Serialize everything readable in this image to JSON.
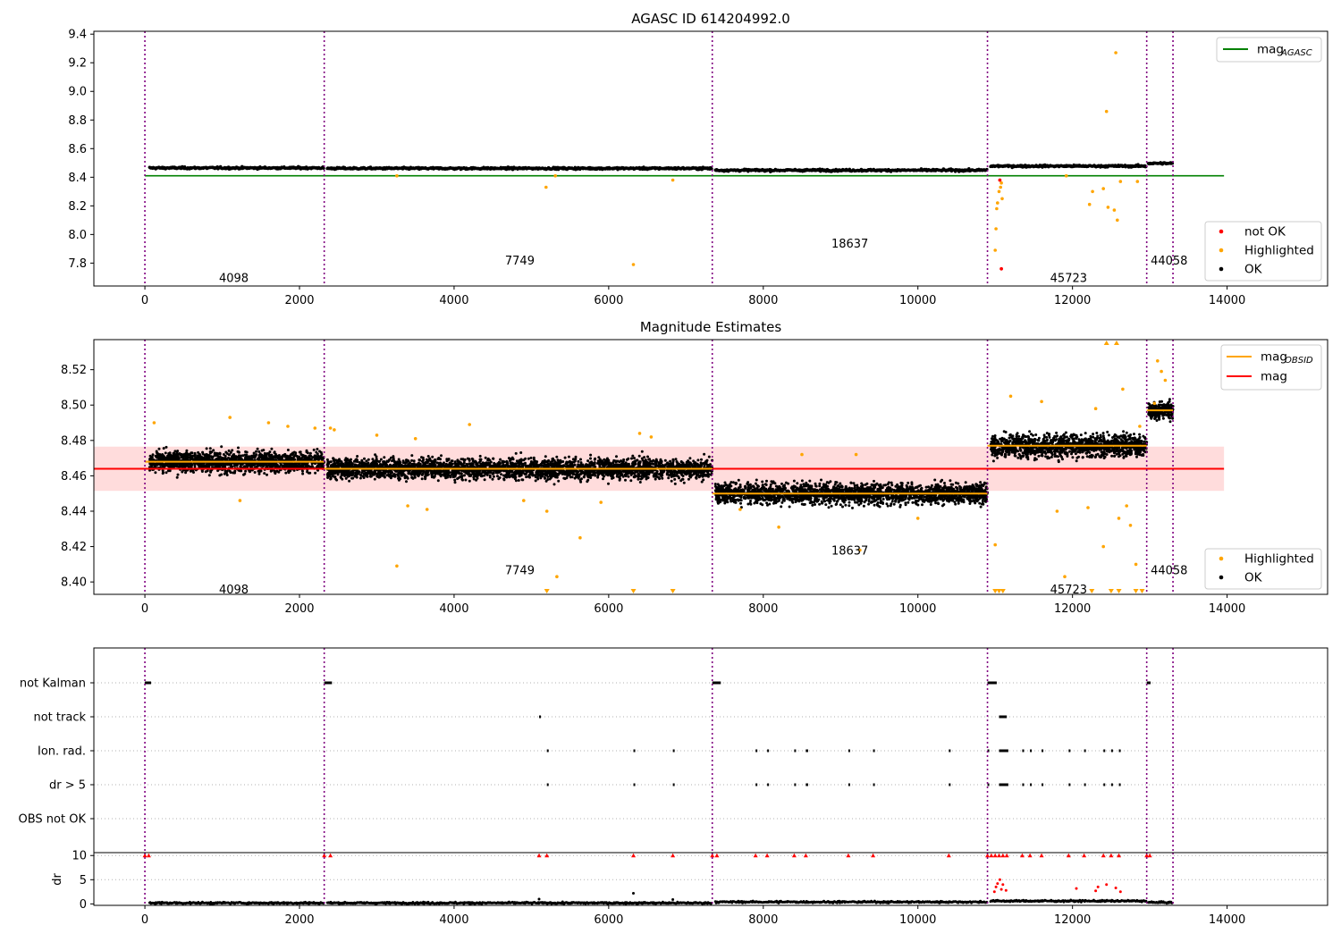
{
  "chart_data": [
    {
      "type": "scatter",
      "title": "AGASC ID 614204992.0",
      "xlim": [
        -660,
        15300
      ],
      "ylim": [
        7.64,
        9.42
      ],
      "x_ticks": [
        0,
        2000,
        4000,
        6000,
        8000,
        10000,
        12000,
        14000
      ],
      "y_ticks": [
        7.8,
        8.0,
        8.2,
        8.4,
        8.6,
        8.8,
        9.0,
        9.2,
        9.4
      ],
      "grid": false,
      "obs_boundaries": [
        0,
        2320,
        7340,
        10900,
        12960,
        13300
      ],
      "obs_labels": [
        {
          "text": "4098",
          "x": 1150,
          "y": 7.7
        },
        {
          "text": "7749",
          "x": 4850,
          "y": 7.82
        },
        {
          "text": "18637",
          "x": 9120,
          "y": 7.94
        },
        {
          "text": "45723",
          "x": 11950,
          "y": 7.7
        },
        {
          "text": "44058",
          "x": 13250,
          "y": 7.82
        }
      ],
      "lines": [
        {
          "name": "magAGASC",
          "color": "#008000",
          "x": [
            0,
            13960
          ],
          "y": [
            8.41,
            8.41
          ]
        }
      ],
      "ok_segments": [
        {
          "x0": 60,
          "x1": 2320,
          "y": 8.465
        },
        {
          "x0": 2360,
          "x1": 7340,
          "y": 8.462
        },
        {
          "x0": 7380,
          "x1": 10900,
          "y": 8.449
        },
        {
          "x0": 10940,
          "x1": 12960,
          "y": 8.478
        },
        {
          "x0": 12980,
          "x1": 13300,
          "y": 8.497
        }
      ],
      "highlighted_points": [
        [
          5190,
          8.33
        ],
        [
          6320,
          7.79
        ],
        [
          6830,
          8.38
        ],
        [
          5310,
          8.41
        ],
        [
          3260,
          8.41
        ],
        [
          11010,
          8.04
        ],
        [
          11030,
          8.22
        ],
        [
          11050,
          8.3
        ],
        [
          11070,
          8.33
        ],
        [
          11090,
          8.25
        ],
        [
          11080,
          8.36
        ],
        [
          11000,
          7.89
        ],
        [
          11020,
          8.18
        ],
        [
          12440,
          8.86
        ],
        [
          12560,
          9.27
        ],
        [
          12220,
          8.21
        ],
        [
          12260,
          8.3
        ],
        [
          12400,
          8.32
        ],
        [
          12460,
          8.19
        ],
        [
          12540,
          8.17
        ],
        [
          12580,
          8.1
        ],
        [
          12620,
          8.37
        ],
        [
          12840,
          8.37
        ],
        [
          11920,
          8.41
        ]
      ],
      "not_ok_points": [
        [
          11060,
          8.38
        ],
        [
          11080,
          7.76
        ]
      ],
      "legend": {
        "position": "upper-right",
        "lines": [
          {
            "label": "mag",
            "sub": "AGASC",
            "color": "#008000"
          }
        ],
        "markers": [
          {
            "label": "not OK",
            "color": "#ff0000"
          },
          {
            "label": "Highlighted",
            "color": "#ffa500"
          },
          {
            "label": "OK",
            "color": "#000000"
          }
        ]
      }
    },
    {
      "type": "scatter",
      "title": "Magnitude Estimates",
      "xlim": [
        -660,
        15300
      ],
      "ylim": [
        8.393,
        8.537
      ],
      "x_ticks": [
        0,
        2000,
        4000,
        6000,
        8000,
        10000,
        12000,
        14000
      ],
      "y_ticks": [
        8.4,
        8.42,
        8.44,
        8.46,
        8.48,
        8.5,
        8.52
      ],
      "grid": false,
      "obs_boundaries": [
        0,
        2320,
        7340,
        10900,
        12960,
        13300
      ],
      "obs_labels": [
        {
          "text": "4098",
          "x": 1150,
          "y": 8.396
        },
        {
          "text": "7749",
          "x": 4850,
          "y": 8.407
        },
        {
          "text": "18637",
          "x": 9120,
          "y": 8.418
        },
        {
          "text": "45723",
          "x": 11950,
          "y": 8.396
        },
        {
          "text": "44058",
          "x": 13250,
          "y": 8.407
        }
      ],
      "band": {
        "x0": -660,
        "x1": 13960,
        "y0": 8.4515,
        "y1": 8.4765,
        "color": "#ffc0c0"
      },
      "lines": [
        {
          "name": "mag",
          "color": "#ff0000",
          "x": [
            -660,
            13960
          ],
          "y": [
            8.464,
            8.464
          ]
        },
        {
          "name": "magOBSID-4098",
          "color": "#ffa500",
          "x": [
            0,
            2320
          ],
          "y": [
            8.468,
            8.468
          ]
        },
        {
          "name": "magOBSID-7749",
          "color": "#ffa500",
          "x": [
            2320,
            7340
          ],
          "y": [
            8.464,
            8.464
          ]
        },
        {
          "name": "magOBSID-18637",
          "color": "#ffa500",
          "x": [
            7340,
            10900
          ],
          "y": [
            8.45,
            8.45
          ]
        },
        {
          "name": "magOBSID-45723",
          "color": "#ffa500",
          "x": [
            10900,
            12960
          ],
          "y": [
            8.477,
            8.477
          ]
        },
        {
          "name": "magOBSID-44058",
          "color": "#ffa500",
          "x": [
            12960,
            13300
          ],
          "y": [
            8.497,
            8.497
          ]
        }
      ],
      "ok_segments": [
        {
          "x0": 60,
          "x1": 2320,
          "y": 8.468,
          "spread": 0.008
        },
        {
          "x0": 2360,
          "x1": 7340,
          "y": 8.464,
          "spread": 0.008
        },
        {
          "x0": 7380,
          "x1": 10900,
          "y": 8.45,
          "spread": 0.008
        },
        {
          "x0": 10940,
          "x1": 12960,
          "y": 8.477,
          "spread": 0.009
        },
        {
          "x0": 12980,
          "x1": 13300,
          "y": 8.497,
          "spread": 0.007
        }
      ],
      "highlighted_points": [
        [
          120,
          8.49
        ],
        [
          1100,
          8.493
        ],
        [
          1600,
          8.49
        ],
        [
          1850,
          8.488
        ],
        [
          2200,
          8.487
        ],
        [
          2400,
          8.487
        ],
        [
          2450,
          8.486
        ],
        [
          3000,
          8.483
        ],
        [
          3500,
          8.481
        ],
        [
          4200,
          8.489
        ],
        [
          1230,
          8.446
        ],
        [
          3260,
          8.409
        ],
        [
          3400,
          8.443
        ],
        [
          3650,
          8.441
        ],
        [
          4900,
          8.446
        ],
        [
          5200,
          8.44
        ],
        [
          5330,
          8.403
        ],
        [
          5630,
          8.425
        ],
        [
          5900,
          8.445
        ],
        [
          6400,
          8.484
        ],
        [
          6550,
          8.482
        ],
        [
          7700,
          8.441
        ],
        [
          8200,
          8.431
        ],
        [
          8500,
          8.472
        ],
        [
          9200,
          8.472
        ],
        [
          9250,
          8.418
        ],
        [
          10000,
          8.436
        ],
        [
          11000,
          8.421
        ],
        [
          11200,
          8.505
        ],
        [
          11600,
          8.502
        ],
        [
          11800,
          8.44
        ],
        [
          11900,
          8.403
        ],
        [
          12200,
          8.442
        ],
        [
          12300,
          8.498
        ],
        [
          12400,
          8.42
        ],
        [
          12600,
          8.436
        ],
        [
          12650,
          8.509
        ],
        [
          12700,
          8.443
        ],
        [
          12750,
          8.432
        ],
        [
          12820,
          8.41
        ],
        [
          12870,
          8.488
        ],
        [
          13100,
          8.525
        ],
        [
          13150,
          8.519
        ],
        [
          13200,
          8.514
        ],
        [
          13060,
          8.501
        ]
      ],
      "clipped_points": [
        [
          5200,
          8.393
        ],
        [
          6320,
          8.393
        ],
        [
          6830,
          8.393
        ],
        [
          11000,
          8.393
        ],
        [
          11050,
          8.393
        ],
        [
          11100,
          8.393
        ],
        [
          12250,
          8.393
        ],
        [
          12500,
          8.393
        ],
        [
          12600,
          8.393
        ],
        [
          12820,
          8.393
        ],
        [
          12900,
          8.393
        ],
        [
          12440,
          8.537
        ],
        [
          12570,
          8.537
        ]
      ],
      "legend": {
        "position": "upper-right",
        "lines": [
          {
            "label": "mag",
            "sub": "OBSID",
            "color": "#ffa500"
          },
          {
            "label": "mag",
            "sub": "",
            "color": "#ff0000"
          }
        ],
        "markers": [
          {
            "label": "Highlighted",
            "color": "#ffa500"
          },
          {
            "label": "OK",
            "color": "#000000"
          }
        ]
      }
    },
    {
      "type": "scatter",
      "title": "",
      "xlim": [
        -660,
        15300
      ],
      "categories": [
        "not Kalman",
        "not track",
        "Ion. rad.",
        "dr > 5",
        "OBS not OK"
      ],
      "obs_boundaries": [
        0,
        2320,
        7340,
        10900,
        12960,
        13300
      ],
      "flags": {
        "not Kalman": [
          [
            0,
            80
          ],
          [
            2320,
            2420
          ],
          [
            7340,
            7450
          ],
          [
            10900,
            11020
          ],
          [
            12960,
            13010
          ]
        ],
        "not track": [
          [
            5100,
            5110
          ],
          [
            11050,
            11150
          ]
        ],
        "Ion. rad.": [
          [
            5200,
            5210
          ],
          [
            6320,
            6330
          ],
          [
            6830,
            6840
          ],
          [
            7900,
            7910
          ],
          [
            8050,
            8060
          ],
          [
            8400,
            8410
          ],
          [
            8550,
            8580
          ],
          [
            9100,
            9110
          ],
          [
            9420,
            9430
          ],
          [
            10400,
            10410
          ],
          [
            10900,
            10910
          ],
          [
            11050,
            11170
          ],
          [
            11350,
            11360
          ],
          [
            11450,
            11460
          ],
          [
            11600,
            11610
          ],
          [
            11950,
            11960
          ],
          [
            12150,
            12160
          ],
          [
            12400,
            12410
          ],
          [
            12500,
            12510
          ],
          [
            12600,
            12610
          ]
        ],
        "dr > 5": [
          [
            5200,
            5210
          ],
          [
            6320,
            6330
          ],
          [
            6830,
            6840
          ],
          [
            7900,
            7910
          ],
          [
            8050,
            8060
          ],
          [
            8400,
            8410
          ],
          [
            8550,
            8580
          ],
          [
            9100,
            9110
          ],
          [
            9420,
            9430
          ],
          [
            10400,
            10410
          ],
          [
            10900,
            10910
          ],
          [
            11050,
            11170
          ],
          [
            11350,
            11360
          ],
          [
            11450,
            11460
          ],
          [
            11600,
            11610
          ],
          [
            11950,
            11960
          ],
          [
            12150,
            12160
          ],
          [
            12400,
            12410
          ],
          [
            12500,
            12510
          ],
          [
            12600,
            12610
          ]
        ],
        "OBS not OK": []
      }
    },
    {
      "type": "scatter",
      "title": "",
      "xlim": [
        -660,
        15300
      ],
      "ylim": [
        -0.3,
        10.6
      ],
      "ylabel": "dr",
      "x_ticks": [
        0,
        2000,
        4000,
        6000,
        8000,
        10000,
        12000,
        14000
      ],
      "y_ticks": [
        0,
        5,
        10
      ],
      "obs_boundaries": [
        0,
        2320,
        7340,
        10900,
        12960,
        13300
      ],
      "ok_segments": [
        {
          "x0": 60,
          "x1": 2320,
          "y": 0.2
        },
        {
          "x0": 2360,
          "x1": 7340,
          "y": 0.2
        },
        {
          "x0": 7380,
          "x1": 10900,
          "y": 0.4
        },
        {
          "x0": 10940,
          "x1": 12960,
          "y": 0.6
        },
        {
          "x0": 12980,
          "x1": 13300,
          "y": 0.3
        }
      ],
      "red_points": [
        [
          10990,
          2.5
        ],
        [
          11010,
          3.5
        ],
        [
          11030,
          4.2
        ],
        [
          11060,
          5.0
        ],
        [
          11080,
          3.0
        ],
        [
          11100,
          4.0
        ],
        [
          11140,
          2.8
        ],
        [
          12050,
          3.2
        ],
        [
          12330,
          3.5
        ],
        [
          12440,
          4.0
        ],
        [
          12560,
          3.3
        ],
        [
          12620,
          2.5
        ],
        [
          12300,
          2.7
        ]
      ],
      "outlier_triangles": [
        0,
        50,
        2320,
        2400,
        5100,
        5200,
        6320,
        6830,
        7340,
        7400,
        7900,
        8050,
        8400,
        8550,
        9100,
        9420,
        10400,
        10900,
        10950,
        11000,
        11050,
        11100,
        11150,
        11350,
        11450,
        11600,
        11950,
        12150,
        12400,
        12500,
        12600,
        12960,
        13000
      ],
      "black_outliers": [
        [
          5100,
          1.0
        ],
        [
          6320,
          2.2
        ],
        [
          6830,
          0.9
        ]
      ]
    }
  ]
}
